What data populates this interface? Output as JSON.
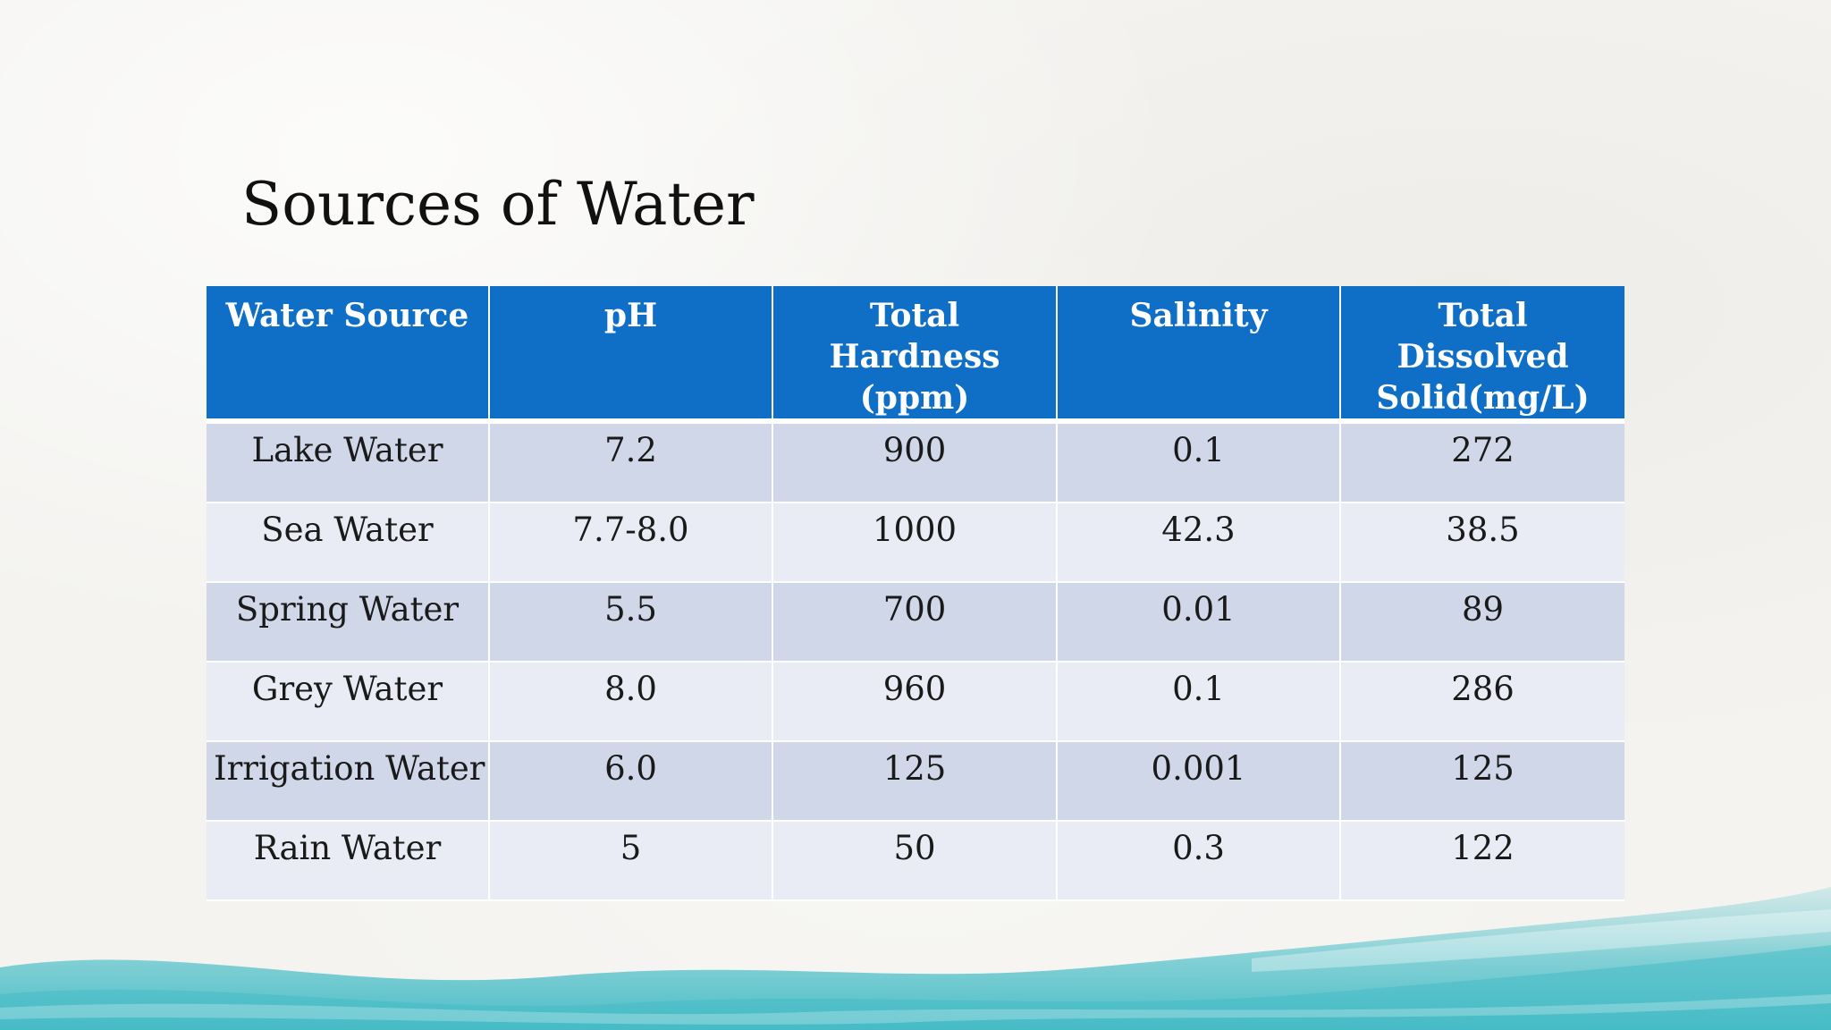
{
  "slide": {
    "title": "Sources of Water"
  },
  "colors": {
    "header_bg": "#0f6fc6",
    "row_odd": "#cfd7e8",
    "row_even": "#e9ecf4"
  },
  "table": {
    "headers": [
      "Water Source",
      "pH",
      "Total Hardness (ppm)",
      "Salinity",
      "Total Dissolved Solid(mg/L)"
    ],
    "rows": [
      [
        "Lake Water",
        "7.2",
        "900",
        "0.1",
        "272"
      ],
      [
        "Sea Water",
        "7.7-8.0",
        "1000",
        "42.3",
        "38.5"
      ],
      [
        "Spring Water",
        "5.5",
        "700",
        "0.01",
        "89"
      ],
      [
        "Grey Water",
        "8.0",
        "960",
        "0.1",
        "286"
      ],
      [
        "Irrigation Water",
        "6.0",
        "125",
        "0.001",
        "125"
      ],
      [
        "Rain Water",
        "5",
        "50",
        "0.3",
        "122"
      ]
    ]
  }
}
